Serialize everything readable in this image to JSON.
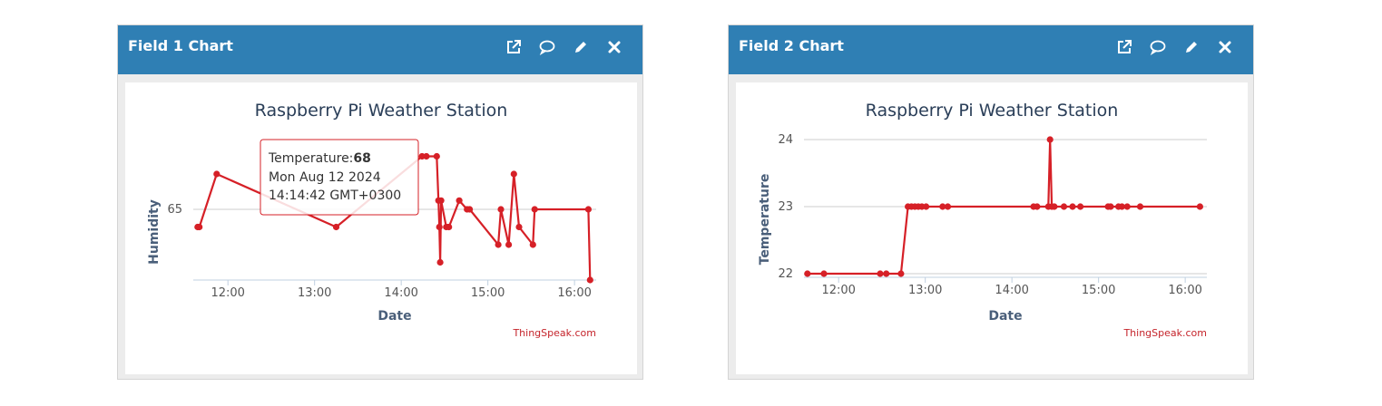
{
  "colors": {
    "header": "#2f7fb4",
    "series": "#d62027",
    "grid": "#cccccc",
    "axis": "#c0d0e0"
  },
  "widgets": [
    {
      "title": "Field 1 Chart",
      "icons": [
        "external-link-icon",
        "comment-icon",
        "pencil-icon",
        "close-icon"
      ],
      "chart_data": {
        "type": "line",
        "title": "Raspberry Pi Weather Station",
        "xlabel": "Date",
        "ylabel": "Humidity",
        "credit": "ThingSpeak.com",
        "x_ticks": [
          "12:00",
          "13:00",
          "14:00",
          "15:00",
          "16:00"
        ],
        "x_tick_values": [
          12,
          13,
          14,
          15,
          16
        ],
        "xlim": [
          11.6,
          16.25
        ],
        "y_ticks": [
          "65"
        ],
        "y_tick_values": [
          65
        ],
        "ylim": [
          61.0,
          69.0
        ],
        "grid": true,
        "series": [
          {
            "points": [
              [
                11.65,
                64
              ],
              [
                11.67,
                64
              ],
              [
                11.87,
                67
              ],
              [
                13.25,
                64
              ],
              [
                14.24,
                68
              ],
              [
                14.29,
                68
              ],
              [
                14.41,
                68
              ],
              [
                14.43,
                65.5
              ],
              [
                14.44,
                64
              ],
              [
                14.45,
                62
              ],
              [
                14.46,
                65.5
              ],
              [
                14.52,
                64
              ],
              [
                14.55,
                64
              ],
              [
                14.67,
                65.5
              ],
              [
                14.76,
                65
              ],
              [
                14.79,
                65
              ],
              [
                15.12,
                63
              ],
              [
                15.15,
                65
              ],
              [
                15.24,
                63
              ],
              [
                15.3,
                67
              ],
              [
                15.36,
                64
              ],
              [
                15.52,
                63
              ],
              [
                15.54,
                65
              ],
              [
                16.16,
                65
              ],
              [
                16.18,
                61
              ]
            ]
          }
        ]
      },
      "tooltip": {
        "prefix": "Temperature:",
        "value": "68",
        "line2": "Mon Aug 12 2024",
        "line3": "14:14:42 GMT+0300"
      }
    },
    {
      "title": "Field 2 Chart",
      "icons": [
        "external-link-icon",
        "comment-icon",
        "pencil-icon",
        "close-icon"
      ],
      "chart_data": {
        "type": "line",
        "title": "Raspberry Pi Weather Station",
        "xlabel": "Date",
        "ylabel": "Temperature",
        "credit": "ThingSpeak.com",
        "x_ticks": [
          "12:00",
          "13:00",
          "14:00",
          "15:00",
          "16:00"
        ],
        "x_tick_values": [
          12,
          13,
          14,
          15,
          16
        ],
        "xlim": [
          11.6,
          16.25
        ],
        "y_ticks": [
          "22",
          "23",
          "24"
        ],
        "y_tick_values": [
          22,
          23,
          24
        ],
        "ylim": [
          22,
          24
        ],
        "grid": true,
        "series": [
          {
            "points": [
              [
                11.64,
                22
              ],
              [
                11.83,
                22
              ],
              [
                12.48,
                22
              ],
              [
                12.55,
                22
              ],
              [
                12.72,
                22
              ],
              [
                12.8,
                23
              ],
              [
                12.84,
                23
              ],
              [
                12.88,
                23
              ],
              [
                12.92,
                23
              ],
              [
                12.96,
                23
              ],
              [
                13.01,
                23
              ],
              [
                13.2,
                23
              ],
              [
                13.26,
                23
              ],
              [
                14.25,
                23
              ],
              [
                14.29,
                23
              ],
              [
                14.42,
                23
              ],
              [
                14.44,
                24
              ],
              [
                14.46,
                23
              ],
              [
                14.49,
                23
              ],
              [
                14.6,
                23
              ],
              [
                14.7,
                23
              ],
              [
                14.79,
                23
              ],
              [
                15.11,
                23
              ],
              [
                15.14,
                23
              ],
              [
                15.23,
                23
              ],
              [
                15.27,
                23
              ],
              [
                15.33,
                23
              ],
              [
                15.48,
                23
              ],
              [
                16.17,
                23
              ]
            ]
          }
        ]
      }
    }
  ]
}
